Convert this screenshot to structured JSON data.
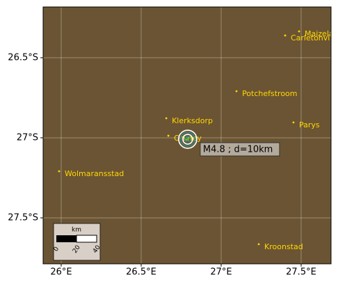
{
  "chart_data": {
    "type": "map",
    "xlim": [
      25.887,
      27.687
    ],
    "ylim": [
      -27.787,
      -26.183
    ],
    "xticks": [
      {
        "value": 26,
        "label": "26°E"
      },
      {
        "value": 26.5,
        "label": "26.5°E"
      },
      {
        "value": 27,
        "label": "27°E"
      },
      {
        "value": 27.5,
        "label": "27.5°E"
      }
    ],
    "yticks": [
      {
        "value": -26.5,
        "label": "26.5°S"
      },
      {
        "value": -27,
        "label": "27°S"
      },
      {
        "value": -27.5,
        "label": "27.5°S"
      }
    ],
    "grid": true,
    "background": "#6b5433",
    "places": {
      "color": "#ffd700",
      "names": [
        "Maizela",
        "Carletonvi",
        "Potchefstroom",
        "Klerksdorp",
        "Orkney",
        "Parys",
        "Wolmaransstad",
        "Kroonstad"
      ],
      "lon": [
        27.487,
        27.4,
        27.096,
        26.657,
        26.67,
        27.452,
        25.987,
        27.235
      ],
      "lat": [
        -26.335,
        -26.361,
        -26.709,
        -26.878,
        -26.987,
        -26.904,
        -27.209,
        -27.665
      ]
    },
    "epicenter": {
      "lon": 26.791,
      "lat": -27.009,
      "label": "M4.8 ; d=10km"
    },
    "scalebar": {
      "unit": "km",
      "ticks": [
        0,
        20,
        40
      ]
    }
  }
}
